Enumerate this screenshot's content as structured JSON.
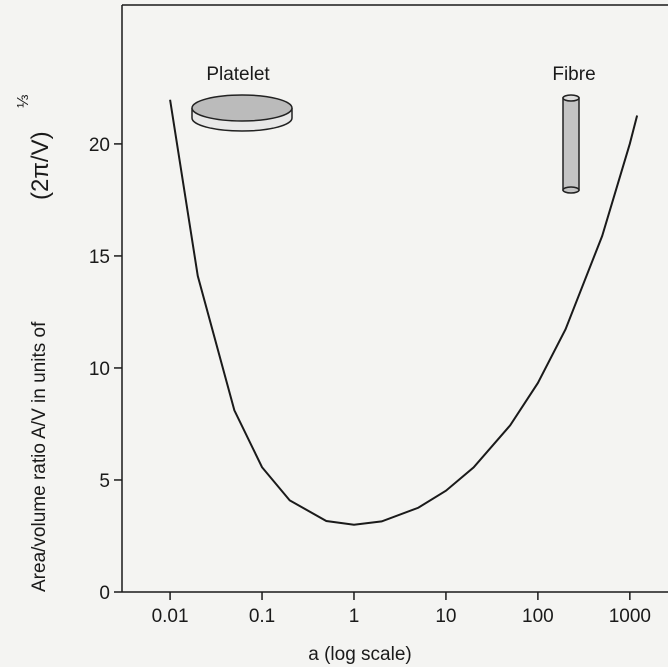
{
  "chart_data": {
    "type": "line",
    "xscale": "log",
    "y_label": "Area/volume ratio A/V in units of",
    "y_label_formula": "(2π/V)",
    "y_label_exponent": "⅓",
    "x_label": "a (log scale)",
    "annotations": [
      "Platelet",
      "Fibre"
    ],
    "x": [
      0.01,
      0.02,
      0.05,
      0.1,
      0.2,
      0.5,
      1,
      2,
      5,
      10,
      20,
      50,
      100,
      200,
      500,
      1000,
      1200
    ],
    "series": [
      {
        "color": "#1a1a1a",
        "values": [
          21.97,
          14.11,
          8.11,
          5.57,
          4.09,
          3.17,
          3.0,
          3.15,
          3.76,
          4.52,
          5.56,
          7.44,
          9.33,
          11.73,
          15.89,
          20.01,
          21.27
        ]
      }
    ],
    "xlim": [
      0.003,
      2600
    ],
    "xticks": [
      0.01,
      0.1,
      1,
      10,
      100,
      1000
    ],
    "ylim": [
      0,
      26.2
    ],
    "yticks": [
      0,
      5,
      10,
      15,
      20
    ]
  }
}
